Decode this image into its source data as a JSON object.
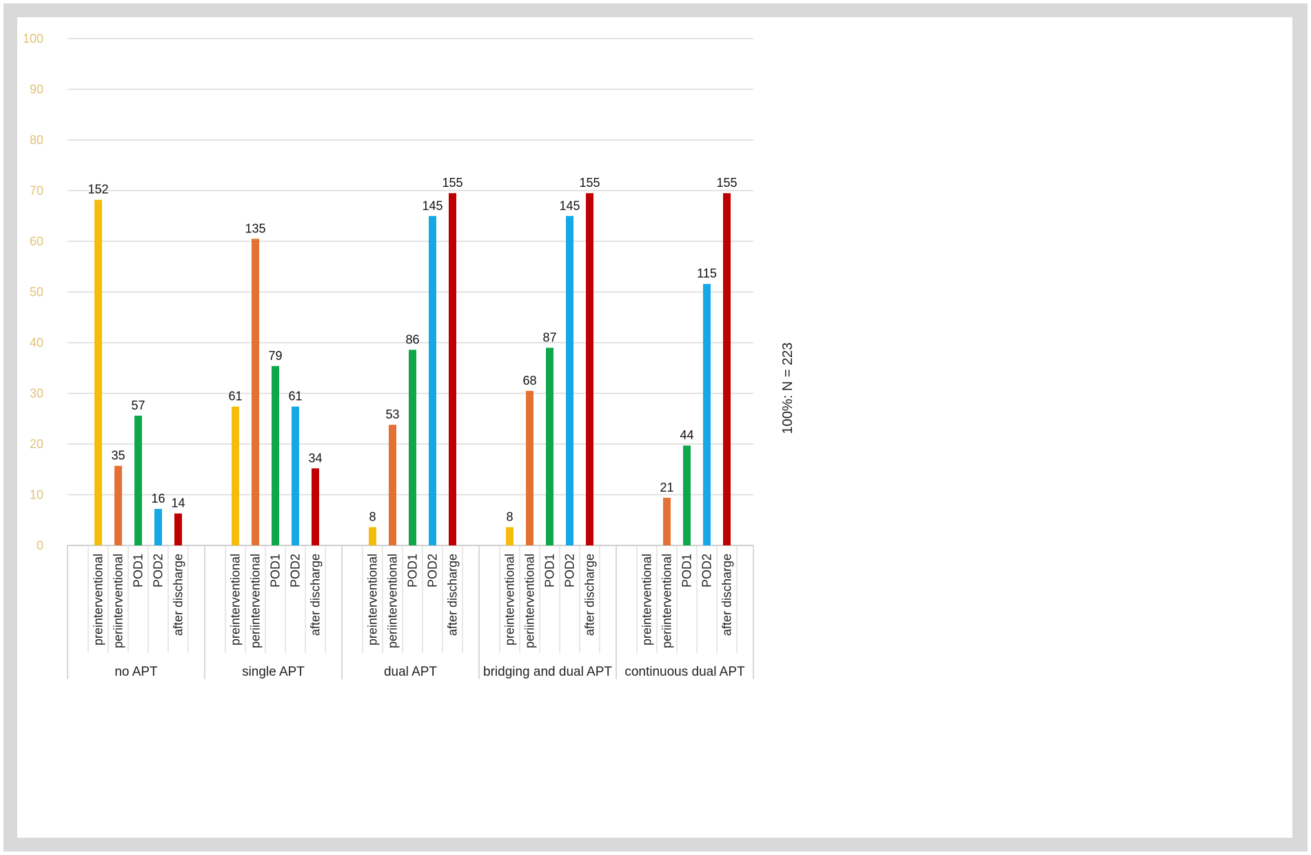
{
  "chart_data": {
    "type": "bar",
    "groups": [
      "no APT",
      "single APT",
      "dual APT",
      "bridging and dual APT",
      "continuous dual APT"
    ],
    "categories": [
      "preinterventional",
      "periinterventional",
      "POD1",
      "POD2",
      "after discharge"
    ],
    "series": [
      {
        "color": "#f5bd0b",
        "values": [
          68.2,
          27.4,
          3.6,
          3.6,
          null
        ],
        "labels": [
          "152",
          "61",
          "8",
          "8",
          ""
        ]
      },
      {
        "color": "#e47134",
        "values": [
          15.7,
          60.5,
          23.8,
          30.5,
          9.4
        ],
        "labels": [
          "35",
          "135",
          "53",
          "68",
          "21"
        ]
      },
      {
        "color": "#0ea84a",
        "values": [
          25.6,
          35.4,
          38.6,
          39.0,
          19.7
        ],
        "labels": [
          "57",
          "79",
          "86",
          "87",
          "44"
        ]
      },
      {
        "color": "#14a9e6",
        "values": [
          7.2,
          27.4,
          65.0,
          65.0,
          51.6
        ],
        "labels": [
          "16",
          "61",
          "145",
          "145",
          "115"
        ]
      },
      {
        "color": "#c00000",
        "values": [
          6.3,
          15.2,
          69.5,
          69.5,
          69.5
        ],
        "labels": [
          "14",
          "34",
          "155",
          "155",
          "155"
        ]
      }
    ],
    "ylim": [
      0,
      100
    ],
    "yticks": [
      "0",
      "10",
      "20",
      "30",
      "40",
      "50",
      "60",
      "70",
      "80",
      "90",
      "100"
    ],
    "annotation": "100%: N = 223",
    "grid": true,
    "legend": "none"
  }
}
